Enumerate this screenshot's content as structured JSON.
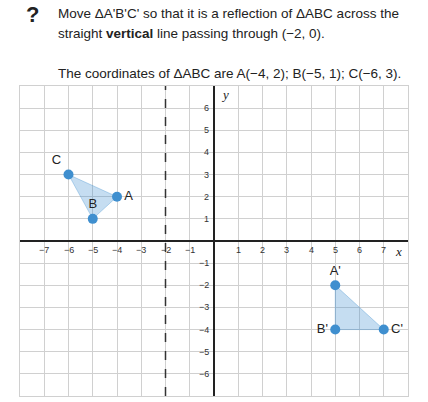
{
  "question": {
    "icon": "?",
    "lines": [
      [
        {
          "text": "Move ΔA'B'C' so that it is a reflection of ΔABC across the"
        }
      ],
      [
        {
          "text": "straight "
        },
        {
          "text": "vertical",
          "bold": true
        },
        {
          "text": " line passing through (−2, 0)."
        }
      ],
      [],
      [
        {
          "text": "The coordinates of ΔABC are A(−4, 2); B(−5, 1); C(−6, 3)."
        }
      ]
    ]
  },
  "chart_data": {
    "type": "scatter",
    "x_label": "x",
    "y_label": "y",
    "xlim": [
      -8,
      8
    ],
    "ylim": [
      -7,
      7
    ],
    "xticks": [
      -7,
      -6,
      -5,
      -4,
      -3,
      -2,
      -1,
      1,
      2,
      3,
      4,
      5,
      6,
      7
    ],
    "yticks": [
      -6,
      -5,
      -4,
      -3,
      -2,
      -1,
      1,
      2,
      3,
      4,
      5,
      6
    ],
    "grid": true,
    "reflection_line": {
      "x": -2
    },
    "series": [
      {
        "labels": [
          "A",
          "B",
          "C"
        ],
        "x": [
          -4,
          -5,
          -6
        ],
        "y": [
          2,
          1,
          3
        ],
        "color": "#3f8fcf"
      },
      {
        "labels": [
          "A'",
          "B'",
          "C'"
        ],
        "x": [
          5,
          5,
          7
        ],
        "y": [
          -2,
          -4,
          -4
        ],
        "color": "#3f8fcf"
      }
    ]
  }
}
